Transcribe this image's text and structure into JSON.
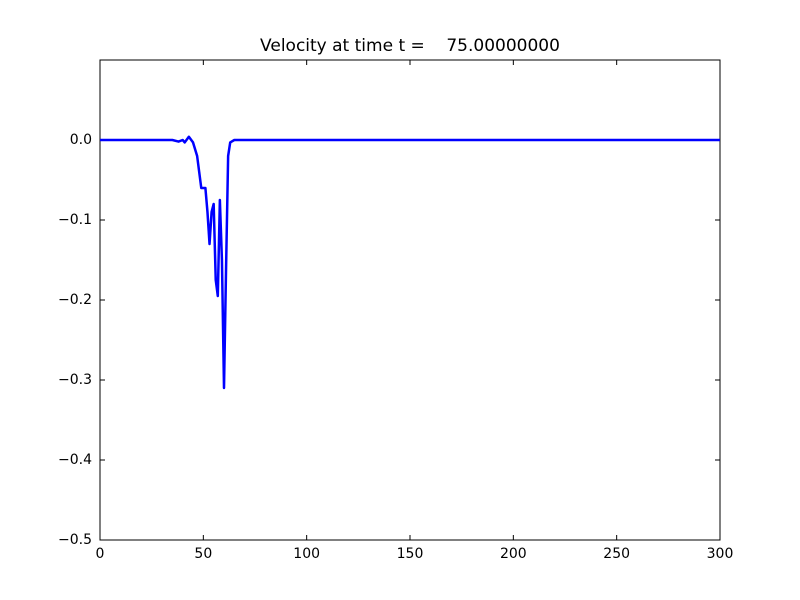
{
  "chart_data": {
    "type": "line",
    "title": "Velocity at time t =    75.00000000",
    "x": [
      0,
      35,
      38,
      40,
      41,
      43,
      45,
      47,
      48,
      49,
      51,
      52,
      53,
      54,
      55,
      56,
      57,
      58,
      59,
      60,
      61,
      62,
      63,
      65,
      300
    ],
    "series": [
      {
        "name": "velocity",
        "color": "#0000ff",
        "values": [
          0,
          0,
          -0.002,
          0,
          -0.003,
          0.004,
          -0.003,
          -0.02,
          -0.04,
          -0.06,
          -0.06,
          -0.09,
          -0.13,
          -0.09,
          -0.08,
          -0.175,
          -0.195,
          -0.075,
          -0.15,
          -0.31,
          -0.16,
          -0.02,
          -0.003,
          0,
          0
        ]
      }
    ],
    "xlim": [
      0,
      300
    ],
    "xticks": [
      0,
      50,
      100,
      150,
      200,
      250,
      300
    ],
    "ylim": [
      -0.5,
      0.1
    ],
    "yticks": [
      {
        "value": -0.5,
        "label": "−0.5"
      },
      {
        "value": -0.4,
        "label": "−0.4"
      },
      {
        "value": -0.3,
        "label": "−0.3"
      },
      {
        "value": -0.2,
        "label": "−0.2"
      },
      {
        "value": -0.1,
        "label": "−0.1"
      },
      {
        "value": 0,
        "label": "0.0"
      }
    ],
    "grid": false
  }
}
